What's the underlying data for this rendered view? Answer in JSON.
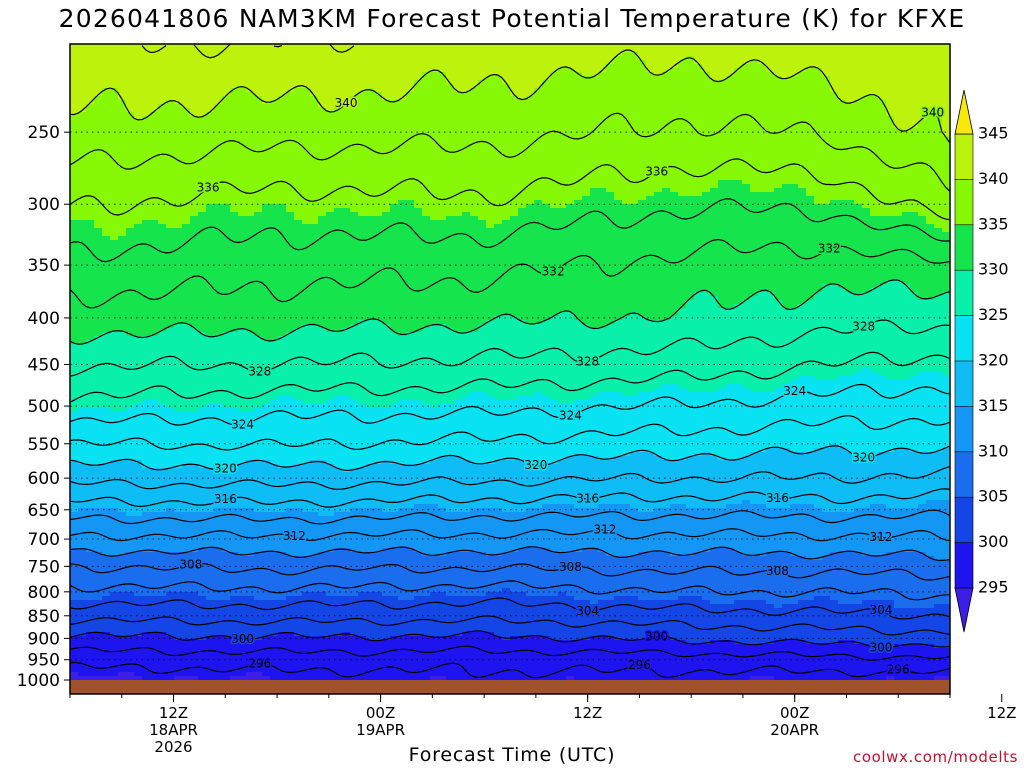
{
  "chart_data": {
    "type": "heatmap",
    "title": "2026041806 NAM3KM Forecast Potential Temperature (K) for KFXE",
    "xlabel": "Forecast Time (UTC)",
    "ylabel": "",
    "credit": "coolwx.com/modelts",
    "y_axis": {
      "scale": "log",
      "range_hPa": [
        1000,
        200
      ],
      "ticks": [
        250,
        300,
        350,
        400,
        450,
        500,
        550,
        600,
        650,
        700,
        750,
        800,
        850,
        900,
        950,
        1000
      ]
    },
    "x_axis": {
      "range_hours": [
        0,
        51
      ],
      "ticks": [
        {
          "hour": 6,
          "lines": [
            "12Z",
            "18APR",
            "2026"
          ]
        },
        {
          "hour": 18,
          "lines": [
            "00Z",
            "19APR"
          ]
        },
        {
          "hour": 30,
          "lines": [
            "12Z"
          ]
        },
        {
          "hour": 42,
          "lines": [
            "00Z",
            "20APR"
          ]
        },
        {
          "hour": 54,
          "lines": [
            "12Z"
          ]
        }
      ]
    },
    "colorbar": {
      "unit": "K",
      "labels": [
        295,
        300,
        305,
        310,
        315,
        320,
        325,
        330,
        335,
        340,
        345
      ],
      "bins": [
        {
          "lo": 290,
          "hi": 295,
          "color": "#3c1ee6"
        },
        {
          "lo": 295,
          "hi": 300,
          "color": "#1e14f0"
        },
        {
          "lo": 300,
          "hi": 305,
          "color": "#1446e6"
        },
        {
          "lo": 305,
          "hi": 310,
          "color": "#1a6eee"
        },
        {
          "lo": 310,
          "hi": 315,
          "color": "#1496f4"
        },
        {
          "lo": 315,
          "hi": 320,
          "color": "#0ebcf6"
        },
        {
          "lo": 320,
          "hi": 325,
          "color": "#08e2f2"
        },
        {
          "lo": 325,
          "hi": 330,
          "color": "#08f0aa"
        },
        {
          "lo": 330,
          "hi": 335,
          "color": "#16e44c"
        },
        {
          "lo": 335,
          "hi": 340,
          "color": "#86f806"
        },
        {
          "lo": 340,
          "hi": 345,
          "color": "#bcf20c"
        },
        {
          "lo": 345,
          "hi": 350,
          "color": "#f8e80c"
        }
      ]
    },
    "contour_interval_K": 2,
    "contours": [
      {
        "theta": 296,
        "labels_at_hour": [
          11,
          33,
          48
        ]
      },
      {
        "theta": 300,
        "labels_at_hour": [
          10,
          34,
          47
        ]
      },
      {
        "theta": 304,
        "labels_at_hour": [
          30,
          47
        ]
      },
      {
        "theta": 308,
        "labels_at_hour": [
          7,
          29,
          41
        ]
      },
      {
        "theta": 312,
        "labels_at_hour": [
          13,
          31,
          47
        ]
      },
      {
        "theta": 316,
        "labels_at_hour": [
          9,
          30,
          41
        ]
      },
      {
        "theta": 320,
        "labels_at_hour": [
          9,
          27,
          46
        ]
      },
      {
        "theta": 324,
        "labels_at_hour": [
          10,
          29,
          42
        ]
      },
      {
        "theta": 328,
        "labels_at_hour": [
          11,
          30,
          46
        ]
      },
      {
        "theta": 332,
        "labels_at_hour": [
          28,
          44
        ]
      },
      {
        "theta": 336,
        "labels_at_hour": [
          8,
          34
        ]
      },
      {
        "theta": 340,
        "labels_at_hour": [
          16,
          50
        ]
      }
    ],
    "profiles_theta_K": [
      {
        "hour": 0,
        "levels_hPa": [
          1000,
          950,
          900,
          850,
          800,
          750,
          700,
          650,
          600,
          550,
          500,
          450,
          400,
          350,
          300,
          250,
          200
        ],
        "theta": [
          294.5,
          296.8,
          299.6,
          302.6,
          305.4,
          308.0,
          311.6,
          315.0,
          318.6,
          322.0,
          325.4,
          328.2,
          331.0,
          333.4,
          336.2,
          339.4,
          341.8
        ]
      },
      {
        "hour": 12,
        "levels_hPa": [
          1000,
          950,
          900,
          850,
          800,
          750,
          700,
          650,
          600,
          550,
          500,
          450,
          400,
          350,
          300,
          250,
          200
        ],
        "theta": [
          295.0,
          297.0,
          299.8,
          302.8,
          305.6,
          308.4,
          311.6,
          315.2,
          318.8,
          322.2,
          324.8,
          328.0,
          330.8,
          332.8,
          335.2,
          338.8,
          342.0
        ]
      },
      {
        "hour": 24,
        "levels_hPa": [
          1000,
          950,
          900,
          850,
          800,
          750,
          700,
          650,
          600,
          550,
          500,
          450,
          400,
          350,
          300,
          250,
          200
        ],
        "theta": [
          295.4,
          296.8,
          299.6,
          302.6,
          305.2,
          308.2,
          311.4,
          314.8,
          318.4,
          321.6,
          324.6,
          327.6,
          330.4,
          332.6,
          335.6,
          338.6,
          341.2
        ]
      },
      {
        "hour": 36,
        "levels_hPa": [
          1000,
          950,
          900,
          850,
          800,
          750,
          700,
          650,
          600,
          550,
          500,
          450,
          400,
          350,
          300,
          250,
          200
        ],
        "theta": [
          295.2,
          297.0,
          300.4,
          303.2,
          306.0,
          308.6,
          311.4,
          314.6,
          318.0,
          321.0,
          323.8,
          327.0,
          329.8,
          331.4,
          334.2,
          337.6,
          340.6
        ]
      },
      {
        "hour": 44,
        "levels_hPa": [
          1000,
          950,
          900,
          850,
          800,
          750,
          700,
          650,
          600,
          550,
          500,
          450,
          400,
          350,
          300,
          250,
          200
        ],
        "theta": [
          295.0,
          297.4,
          300.8,
          303.6,
          306.0,
          308.6,
          311.6,
          314.8,
          318.0,
          320.6,
          323.2,
          326.0,
          328.8,
          331.0,
          334.4,
          338.2,
          341.4
        ]
      },
      {
        "hour": 51,
        "levels_hPa": [
          1000,
          950,
          900,
          850,
          800,
          750,
          700,
          650,
          600,
          550,
          500,
          450,
          400,
          350,
          300,
          250,
          200
        ],
        "theta": [
          295.0,
          297.6,
          301.2,
          304.0,
          306.4,
          309.0,
          311.8,
          314.6,
          317.6,
          320.4,
          322.8,
          325.4,
          328.6,
          331.6,
          337.2,
          340.6,
          341.6
        ]
      }
    ]
  }
}
